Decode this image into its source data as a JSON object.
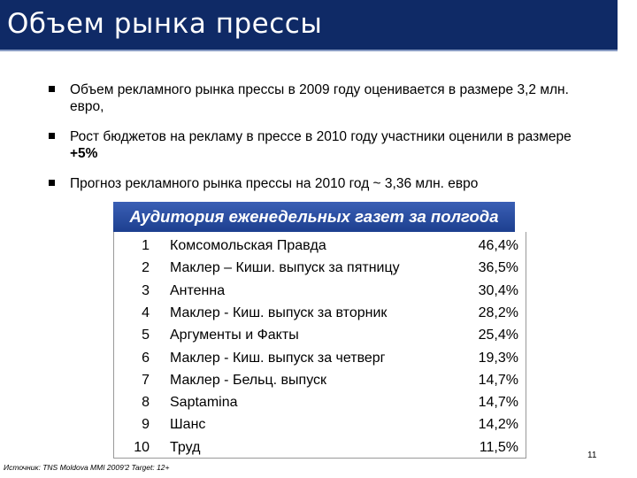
{
  "header": {
    "title": "Объем рынка прессы"
  },
  "bullets": [
    {
      "text": "Объем рекламного рынка прессы в 2009 году оценивается в размере 3,2 млн. евро,"
    },
    {
      "text": "Рост бюджетов на рекламу в прессе в 2010 году участники оценили в размере ",
      "bold": "+5%"
    },
    {
      "text": "Прогноз рекламного рынка прессы на 2010 год ~ 3,36 млн. евро"
    }
  ],
  "table": {
    "title": "Аудитория еженедельных газет за полгода",
    "rows": [
      [
        1,
        "Комсомольская Правда",
        "46,4%"
      ],
      [
        2,
        "Маклер – Киши. выпуск за пятницу",
        "36,5%"
      ],
      [
        3,
        "Антенна",
        "30,4%"
      ],
      [
        4,
        "Маклер - Киш. выпуск за вторник",
        "28,2%"
      ],
      [
        5,
        "Аргументы и Факты",
        "25,4%"
      ],
      [
        6,
        "Маклер - Киш. выпуск за четверг",
        "19,3%"
      ],
      [
        7,
        "Маклер - Бельц. выпуск",
        "14,7%"
      ],
      [
        8,
        "Saptamina",
        "14,7%"
      ],
      [
        9,
        "Шанс",
        "14,2%"
      ],
      [
        10,
        "Труд",
        "11,5%"
      ]
    ]
  },
  "footer": {
    "source": "Источник: TNS Moldova MMI 2009'2 Target: 12+",
    "page_number": 11
  }
}
